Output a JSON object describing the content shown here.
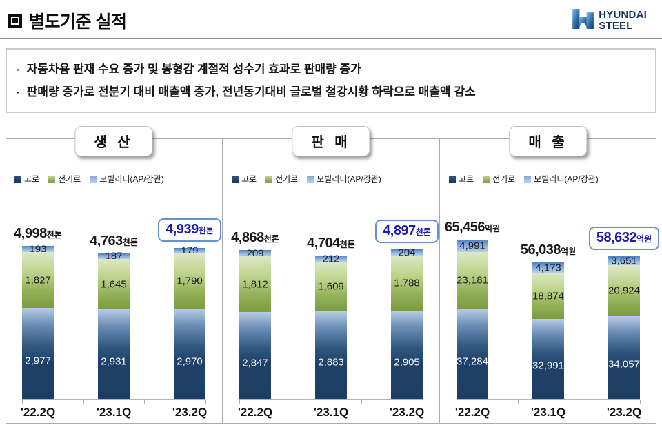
{
  "header": {
    "title": "별도기준 실적",
    "logo": {
      "line1": "HYUNDAI",
      "line2": "STEEL"
    }
  },
  "highlights": {
    "bullets": [
      "자동차용 판재 수요 증가 및 봉형강 계절적 성수기 효과로 판매량 증가",
      "판매량 증가로 전분기 대비 매출액 증가, 전년동기대비 글로벌 철강시황 하락으로 매출액 감소"
    ]
  },
  "legend": {
    "items": [
      {
        "label": "고로",
        "color": "#17365d"
      },
      {
        "label": "전기로",
        "color": "#80a045"
      },
      {
        "label": "모빌리티(AP/강관)",
        "color": "#8db3de"
      }
    ]
  },
  "colors": {
    "accent_highlight_text": "#1c1cae",
    "accent_highlight_border": "#6592cc",
    "blast_furnace_navy": "#1d3e64",
    "eaf_green": "#7d9c40",
    "mobility_blue": "#8db3de"
  },
  "chart_data": [
    {
      "type": "bar",
      "stacked": true,
      "title": "생 산",
      "unit": "천톤",
      "categories": [
        "'22.2Q",
        "'23.1Q",
        "'23.2Q"
      ],
      "series": [
        {
          "name": "고로",
          "values": [
            2977,
            2931,
            2970
          ]
        },
        {
          "name": "전기로",
          "values": [
            1827,
            1645,
            1790
          ]
        },
        {
          "name": "모빌리티(AP/강관)",
          "values": [
            193,
            187,
            179
          ]
        }
      ],
      "totals": [
        "4,998",
        "4,763",
        "4,939"
      ],
      "totals_numeric": [
        4998,
        4763,
        4939
      ],
      "highlight_index": 2,
      "ylim": [
        0,
        5300
      ],
      "grid": false,
      "legend_position": "top-left"
    },
    {
      "type": "bar",
      "stacked": true,
      "title": "판 매",
      "unit": "천톤",
      "categories": [
        "'22.2Q",
        "'23.1Q",
        "'23.2Q"
      ],
      "series": [
        {
          "name": "고로",
          "values": [
            2847,
            2883,
            2905
          ]
        },
        {
          "name": "전기로",
          "values": [
            1812,
            1609,
            1788
          ]
        },
        {
          "name": "모빌리티(AP/강관)",
          "values": [
            209,
            212,
            204
          ]
        }
      ],
      "totals": [
        "4,868",
        "4,704",
        "4,897"
      ],
      "totals_numeric": [
        4868,
        4704,
        4897
      ],
      "highlight_index": 2,
      "ylim": [
        0,
        5300
      ],
      "grid": false,
      "legend_position": "top-left"
    },
    {
      "type": "bar",
      "stacked": true,
      "title": "매 출",
      "unit": "억원",
      "categories": [
        "'22.2Q",
        "'23.1Q",
        "'23.2Q"
      ],
      "series": [
        {
          "name": "고로",
          "values": [
            37284,
            32991,
            34057
          ]
        },
        {
          "name": "전기로",
          "values": [
            23181,
            18874,
            20924
          ]
        },
        {
          "name": "모빌리티(AP/강관)",
          "values": [
            4991,
            4173,
            3651
          ]
        }
      ],
      "totals": [
        "65,456",
        "56,038",
        "58,632"
      ],
      "totals_numeric": [
        65456,
        56038,
        58632
      ],
      "highlight_index": 2,
      "ylim": [
        0,
        66500
      ],
      "grid": false,
      "legend_position": "top-left"
    }
  ]
}
